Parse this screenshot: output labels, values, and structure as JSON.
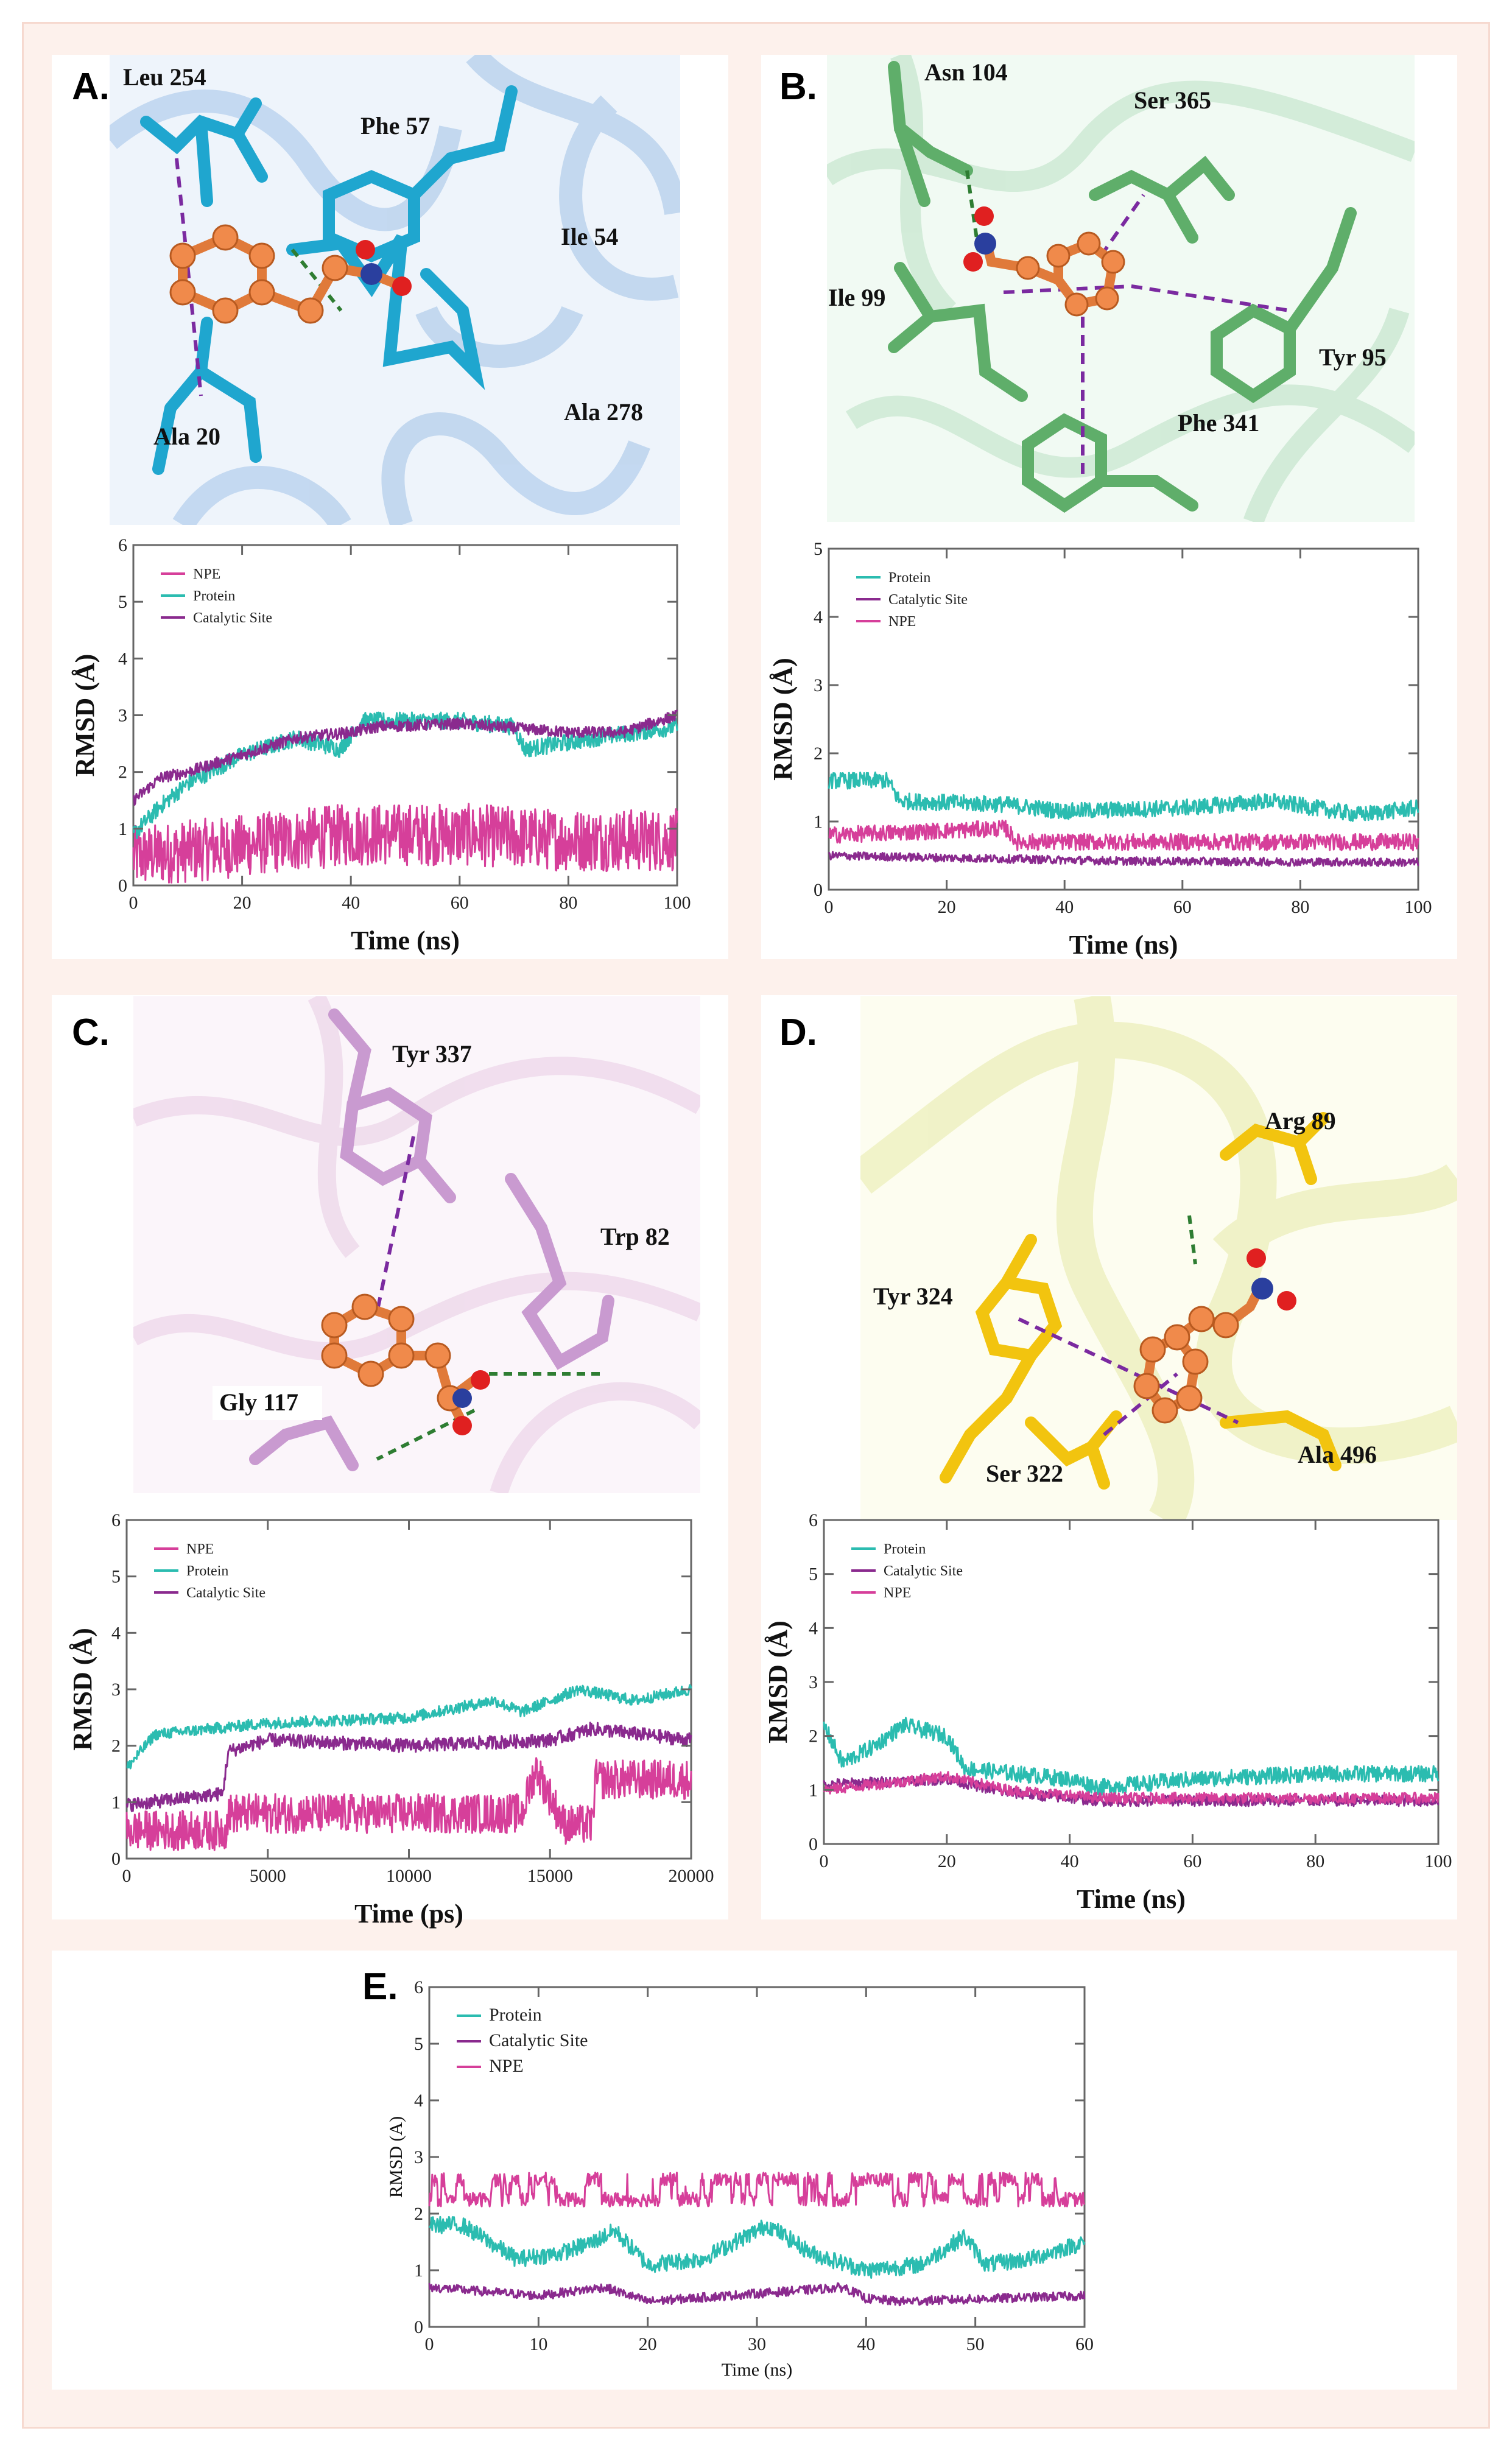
{
  "panels": {
    "A": {
      "label": "A.",
      "residues": [
        "Leu 254",
        "Phe 57",
        "Ile 54",
        "Ala 278",
        "Ala 20"
      ]
    },
    "B": {
      "label": "B.",
      "residues": [
        "Asn 104",
        "Ser 365",
        "Ile 99",
        "Tyr 95",
        "Phe 341"
      ]
    },
    "C": {
      "label": "C.",
      "residues": [
        "Tyr 337",
        "Trp 82",
        "Gly 117"
      ]
    },
    "D": {
      "label": "D.",
      "residues": [
        "Arg 89",
        "Tyr 324",
        "Ser 322",
        "Ala 496"
      ]
    },
    "E": {
      "label": "E."
    }
  },
  "colors": {
    "protein": "#2bbcb0",
    "catalytic": "#8a2a8e",
    "npe": "#d63f9a",
    "catalytic_b": "#b13aa6",
    "ligand": "#f08a4b"
  },
  "chart_data": [
    {
      "id": "A",
      "type": "line",
      "title": "",
      "xlabel": "Time (ns)",
      "ylabel": "RMSD (Å)",
      "xlim": [
        0,
        100
      ],
      "ylim": [
        0,
        6
      ],
      "xticks": [
        0,
        20,
        40,
        60,
        80,
        100
      ],
      "yticks": [
        0,
        1,
        2,
        3,
        4,
        5,
        6
      ],
      "legend": "top-left",
      "series": [
        {
          "name": "NPE",
          "color": "#d63f9a",
          "fluctuation": 0.55,
          "points": [
            [
              0,
              0.5
            ],
            [
              10,
              0.6
            ],
            [
              20,
              0.7
            ],
            [
              40,
              0.9
            ],
            [
              60,
              0.9
            ],
            [
              80,
              0.8
            ],
            [
              100,
              0.8
            ]
          ]
        },
        {
          "name": "Protein",
          "color": "#2bbcb0",
          "fluctuation": 0.15,
          "points": [
            [
              0,
              0.9
            ],
            [
              2,
              1.1
            ],
            [
              5,
              1.4
            ],
            [
              10,
              1.8
            ],
            [
              20,
              2.3
            ],
            [
              30,
              2.6
            ],
            [
              38,
              2.4
            ],
            [
              42,
              2.9
            ],
            [
              60,
              2.9
            ],
            [
              70,
              2.8
            ],
            [
              72,
              2.4
            ],
            [
              85,
              2.6
            ],
            [
              100,
              2.8
            ]
          ]
        },
        {
          "name": "Catalytic Site",
          "color": "#8a2a8e",
          "fluctuation": 0.1,
          "points": [
            [
              0,
              1.5
            ],
            [
              5,
              1.9
            ],
            [
              10,
              2.0
            ],
            [
              20,
              2.3
            ],
            [
              30,
              2.6
            ],
            [
              40,
              2.7
            ],
            [
              45,
              2.8
            ],
            [
              60,
              2.85
            ],
            [
              80,
              2.7
            ],
            [
              90,
              2.7
            ],
            [
              100,
              3.0
            ]
          ]
        }
      ]
    },
    {
      "id": "B",
      "type": "line",
      "title": "",
      "xlabel": "Time (ns)",
      "ylabel": "RMSD (Å)",
      "xlim": [
        0,
        100
      ],
      "ylim": [
        0,
        5
      ],
      "xticks": [
        0,
        20,
        40,
        60,
        80,
        100
      ],
      "yticks": [
        0,
        1,
        2,
        3,
        4,
        5
      ],
      "legend": "top-left",
      "series": [
        {
          "name": "Protein",
          "color": "#2bbcb0",
          "fluctuation": 0.12,
          "points": [
            [
              0,
              1.6
            ],
            [
              10,
              1.6
            ],
            [
              12,
              1.3
            ],
            [
              30,
              1.25
            ],
            [
              40,
              1.15
            ],
            [
              60,
              1.2
            ],
            [
              75,
              1.3
            ],
            [
              90,
              1.1
            ],
            [
              100,
              1.2
            ]
          ]
        },
        {
          "name": "Catalytic Site",
          "color": "#8a2a8e",
          "fluctuation": 0.06,
          "points": [
            [
              0,
              0.5
            ],
            [
              50,
              0.42
            ],
            [
              100,
              0.4
            ]
          ]
        },
        {
          "name": "NPE",
          "color": "#d63f9a",
          "fluctuation": 0.12,
          "points": [
            [
              0,
              0.8
            ],
            [
              30,
              0.9
            ],
            [
              32,
              0.7
            ],
            [
              100,
              0.7
            ]
          ]
        }
      ]
    },
    {
      "id": "C",
      "type": "line",
      "title": "",
      "xlabel": "Time (ps)",
      "ylabel": "RMSD (Å)",
      "xlim": [
        0,
        20000
      ],
      "ylim": [
        0,
        6
      ],
      "xticks": [
        0,
        5000,
        10000,
        15000,
        20000
      ],
      "yticks": [
        0,
        1,
        2,
        3,
        4,
        5,
        6
      ],
      "legend": "top-left",
      "series": [
        {
          "name": "NPE",
          "color": "#d63f9a",
          "fluctuation": 0.35,
          "points": [
            [
              0,
              0.5
            ],
            [
              3500,
              0.5
            ],
            [
              3600,
              0.8
            ],
            [
              14000,
              0.8
            ],
            [
              14500,
              1.6
            ],
            [
              15500,
              0.6
            ],
            [
              16500,
              0.6
            ],
            [
              16600,
              1.4
            ],
            [
              20000,
              1.4
            ]
          ]
        },
        {
          "name": "Protein",
          "color": "#2bbcb0",
          "fluctuation": 0.1,
          "points": [
            [
              0,
              1.6
            ],
            [
              1000,
              2.2
            ],
            [
              5000,
              2.4
            ],
            [
              10000,
              2.5
            ],
            [
              13000,
              2.8
            ],
            [
              14000,
              2.6
            ],
            [
              16000,
              3.0
            ],
            [
              18000,
              2.8
            ],
            [
              20000,
              3.0
            ]
          ]
        },
        {
          "name": "Catalytic Site",
          "color": "#8a2a8e",
          "fluctuation": 0.12,
          "points": [
            [
              0,
              0.95
            ],
            [
              3400,
              1.15
            ],
            [
              3600,
              1.9
            ],
            [
              5000,
              2.1
            ],
            [
              10000,
              2.0
            ],
            [
              15000,
              2.1
            ],
            [
              16500,
              2.3
            ],
            [
              20000,
              2.1
            ]
          ]
        }
      ]
    },
    {
      "id": "D",
      "type": "line",
      "title": "",
      "xlabel": "Time (ns)",
      "ylabel": "RMSD (Å)",
      "xlim": [
        0,
        100
      ],
      "ylim": [
        0,
        6
      ],
      "xticks": [
        0,
        20,
        40,
        60,
        80,
        100
      ],
      "yticks": [
        0,
        1,
        2,
        3,
        4,
        5,
        6
      ],
      "legend": "top-left",
      "series": [
        {
          "name": "Protein",
          "color": "#2bbcb0",
          "fluctuation": 0.15,
          "points": [
            [
              0,
              2.2
            ],
            [
              3,
              1.5
            ],
            [
              8,
              1.8
            ],
            [
              13,
              2.2
            ],
            [
              20,
              2.0
            ],
            [
              23,
              1.4
            ],
            [
              40,
              1.2
            ],
            [
              45,
              1.05
            ],
            [
              60,
              1.2
            ],
            [
              80,
              1.3
            ],
            [
              100,
              1.3
            ]
          ]
        },
        {
          "name": "Catalytic Site",
          "color": "#8a2a8e",
          "fluctuation": 0.1,
          "points": [
            [
              0,
              1.1
            ],
            [
              20,
              1.2
            ],
            [
              30,
              0.95
            ],
            [
              45,
              0.8
            ],
            [
              100,
              0.8
            ]
          ]
        },
        {
          "name": "NPE",
          "color": "#d63f9a",
          "fluctuation": 0.1,
          "points": [
            [
              0,
              1.0
            ],
            [
              20,
              1.25
            ],
            [
              30,
              1.0
            ],
            [
              45,
              0.85
            ],
            [
              100,
              0.85
            ]
          ]
        }
      ]
    },
    {
      "id": "E",
      "type": "line",
      "title": "",
      "xlabel": "Time (ns)",
      "ylabel": "RMSD (A)",
      "xlim": [
        0,
        60
      ],
      "ylim": [
        0,
        6
      ],
      "xticks": [
        0,
        10,
        20,
        30,
        40,
        50,
        60
      ],
      "yticks": [
        0,
        1,
        2,
        3,
        4,
        5,
        6
      ],
      "legend": "top-left",
      "series": [
        {
          "name": "Protein",
          "color": "#2bbcb0",
          "fluctuation": 0.15,
          "points": [
            [
              0,
              1.8
            ],
            [
              3,
              1.8
            ],
            [
              8,
              1.2
            ],
            [
              12,
              1.3
            ],
            [
              15,
              1.5
            ],
            [
              17,
              1.7
            ],
            [
              20,
              1.1
            ],
            [
              25,
              1.2
            ],
            [
              29,
              1.6
            ],
            [
              31,
              1.8
            ],
            [
              35,
              1.3
            ],
            [
              40,
              1.0
            ],
            [
              45,
              1.1
            ],
            [
              49,
              1.6
            ],
            [
              51,
              1.1
            ],
            [
              55,
              1.2
            ],
            [
              60,
              1.5
            ]
          ]
        },
        {
          "name": "Catalytic Site",
          "color": "#8a2a8e",
          "fluctuation": 0.08,
          "points": [
            [
              0,
              0.7
            ],
            [
              10,
              0.55
            ],
            [
              16,
              0.7
            ],
            [
              20,
              0.45
            ],
            [
              38,
              0.7
            ],
            [
              40,
              0.5
            ],
            [
              43,
              0.45
            ],
            [
              60,
              0.55
            ]
          ]
        },
        {
          "name": "NPE",
          "color": "#d63f9a",
          "fluctuation": 0.3,
          "points": [
            [
              0,
              2.35
            ],
            [
              60,
              2.35
            ]
          ]
        }
      ]
    }
  ]
}
